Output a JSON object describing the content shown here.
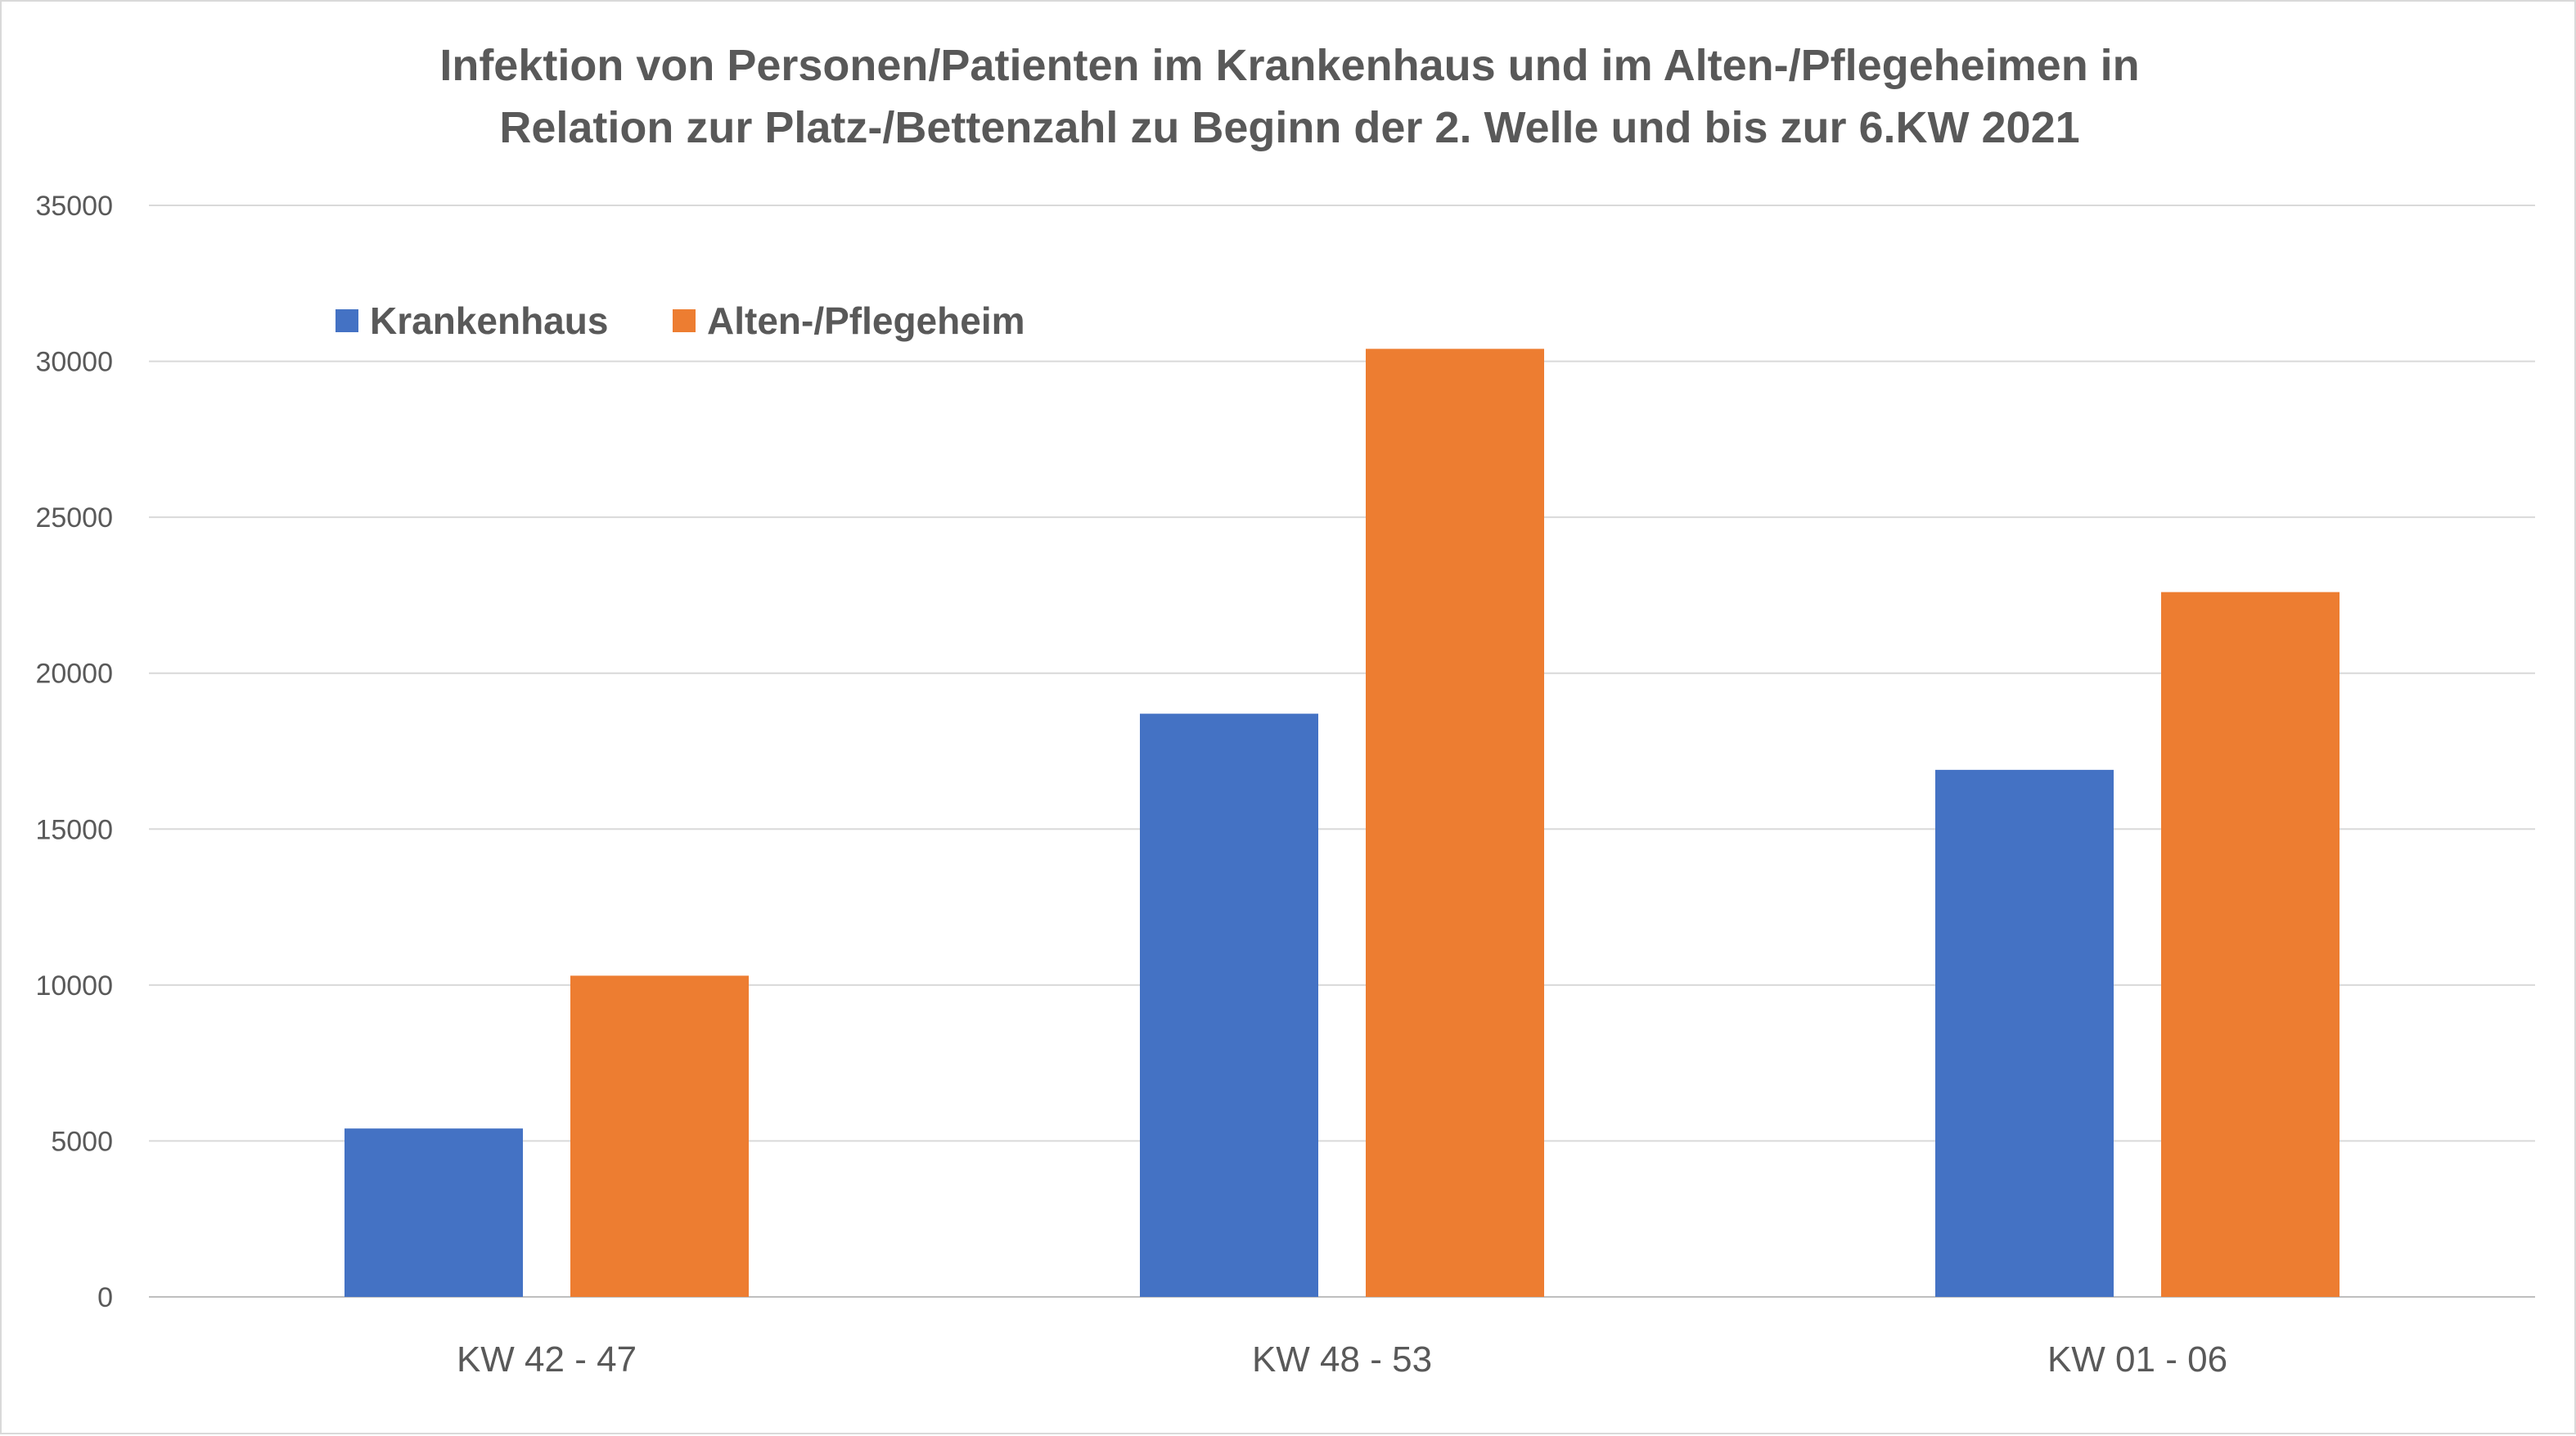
{
  "chart_data": {
    "type": "bar",
    "title_lines": [
      "Infektion von Personen/Patienten im Krankenhaus und im Alten-/Pflegeheimen in",
      "Relation zur Platz-/Bettenzahl zu Beginn der 2. Welle und bis zur 6.KW 2021"
    ],
    "categories": [
      "KW 42 - 47",
      "KW 48 - 53",
      "KW 01 - 06"
    ],
    "series": [
      {
        "name": "Krankenhaus",
        "color": "#4472c4",
        "values": [
          5400,
          18700,
          16900
        ]
      },
      {
        "name": "Alten-/Pflegeheim",
        "color": "#ed7d31",
        "values": [
          10300,
          30400,
          22600
        ]
      }
    ],
    "xlabel": "",
    "ylabel": "",
    "ylim": [
      0,
      35000
    ],
    "yticks": [
      "0",
      "5000",
      "10000",
      "15000",
      "20000",
      "25000",
      "30000",
      "35000"
    ],
    "grid": true,
    "legend_position": "top-left"
  }
}
